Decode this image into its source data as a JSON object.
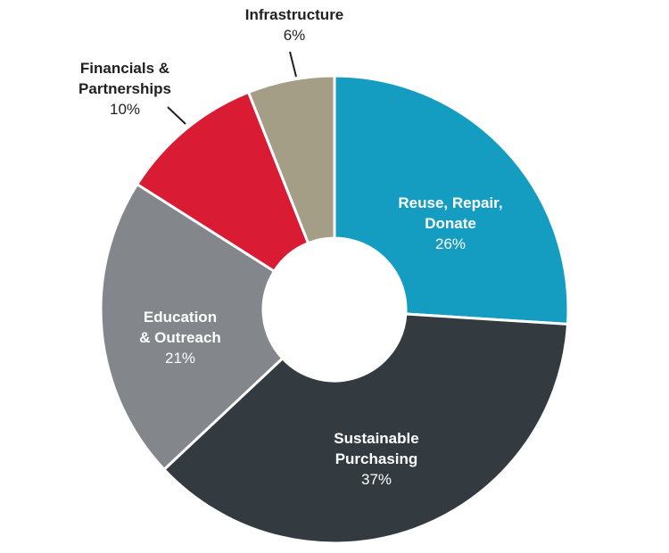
{
  "chart_data": {
    "type": "pie",
    "donut": true,
    "slices": [
      {
        "label": [
          "Reuse, Repair,",
          "Donate"
        ],
        "pct_label": "26%",
        "value": 26,
        "color": "#149dc1",
        "text_color": "#ffffff"
      },
      {
        "label": [
          "Sustainable",
          "Purchasing"
        ],
        "pct_label": "37%",
        "value": 37,
        "color": "#333b41",
        "text_color": "#ffffff"
      },
      {
        "label": [
          "Education",
          "& Outreach"
        ],
        "pct_label": "21%",
        "value": 21,
        "color": "#83878b",
        "text_color": "#ffffff"
      },
      {
        "label": [
          "Financials &",
          "Partnerships"
        ],
        "pct_label": "10%",
        "value": 10,
        "color": "#d91b34",
        "text_color": "#231f20"
      },
      {
        "label": [
          "Infrastructure"
        ],
        "pct_label": "6%",
        "value": 6,
        "color": "#a59e87",
        "text_color": "#231f20"
      }
    ]
  }
}
